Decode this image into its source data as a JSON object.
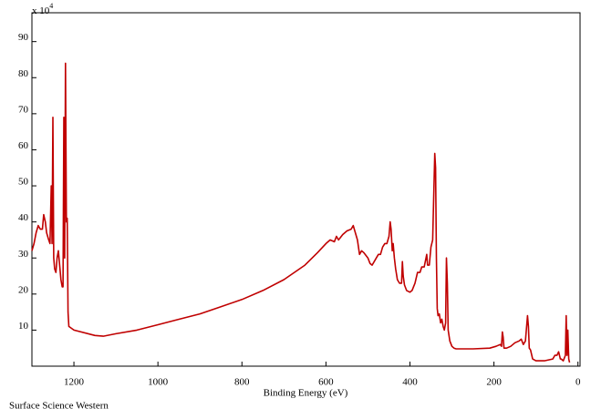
{
  "chart_data": {
    "type": "line",
    "y_multiplier": "x 10",
    "y_multiplier_exp": "4",
    "xlabel": "Binding Energy (eV)",
    "footer": "Surface Science Western",
    "xlim": [
      1300,
      -5
    ],
    "ylim": [
      0,
      98
    ],
    "xticks": [
      1200,
      1000,
      800,
      600,
      400,
      200,
      0
    ],
    "yticks": [
      10,
      20,
      30,
      40,
      50,
      60,
      70,
      80,
      90
    ],
    "series": [
      {
        "color": "#c00000",
        "x": [
          1300,
          1295,
          1290,
          1285,
          1280,
          1275,
          1272,
          1268,
          1265,
          1260,
          1257,
          1254,
          1252,
          1250,
          1248,
          1246,
          1243,
          1240,
          1237,
          1234,
          1231,
          1228,
          1226,
          1224,
          1222,
          1220,
          1218,
          1216,
          1214,
          1212,
          1200,
          1150,
          1130,
          1100,
          1050,
          1000,
          950,
          900,
          850,
          800,
          750,
          700,
          650,
          620,
          600,
          590,
          580,
          575,
          570,
          560,
          550,
          540,
          535,
          530,
          525,
          520,
          515,
          510,
          500,
          495,
          490,
          485,
          480,
          475,
          470,
          465,
          460,
          455,
          450,
          447,
          445,
          442,
          440,
          437,
          434,
          430,
          425,
          420,
          418,
          416,
          413,
          408,
          400,
          395,
          388,
          382,
          376,
          372,
          366,
          360,
          358,
          354,
          350,
          346,
          341,
          339,
          337,
          335,
          333,
          330,
          327,
          324,
          321,
          318,
          315,
          313,
          311,
          309,
          305,
          300,
          295,
          290,
          250,
          210,
          195,
          185,
          182,
          180,
          178,
          176,
          170,
          160,
          150,
          140,
          135,
          130,
          125,
          120,
          118,
          116,
          113,
          108,
          100,
          80,
          60,
          55,
          50,
          46,
          42,
          40,
          35,
          30,
          28,
          26,
          24,
          22,
          20
        ],
        "values": [
          32,
          34,
          37,
          39,
          38,
          38,
          42,
          40,
          37,
          35,
          34,
          50,
          34,
          69,
          30,
          27,
          26,
          30,
          32,
          28,
          24,
          22,
          22,
          69,
          30,
          84,
          40,
          41,
          15,
          11,
          10,
          8.5,
          8.3,
          9,
          10,
          11.5,
          13,
          14.5,
          16.5,
          18.5,
          21,
          24,
          28,
          31.5,
          34,
          35,
          34.5,
          36,
          35,
          36.5,
          37.5,
          38,
          39,
          37,
          35,
          31,
          32,
          31.5,
          30,
          28.5,
          28,
          29,
          30,
          31,
          31,
          33,
          34,
          34,
          36,
          40,
          38,
          32,
          34,
          30,
          27,
          24,
          23,
          23,
          29,
          25,
          22.5,
          21,
          20.5,
          21,
          23,
          26,
          26,
          27.5,
          27.5,
          31,
          28,
          28,
          33,
          35,
          59,
          55,
          30,
          16,
          14,
          14.5,
          12,
          13,
          11,
          10,
          12,
          30,
          23,
          10,
          7,
          5.5,
          5,
          4.8,
          4.8,
          5,
          5.5,
          6,
          5.5,
          9.5,
          8,
          5,
          5,
          5.5,
          6.5,
          7,
          7.5,
          6,
          7,
          14,
          11,
          5,
          4.5,
          2,
          1.5,
          1.5,
          2,
          3,
          3,
          4,
          2,
          2,
          1.5,
          3,
          14,
          3,
          10,
          2,
          1
        ]
      }
    ]
  }
}
